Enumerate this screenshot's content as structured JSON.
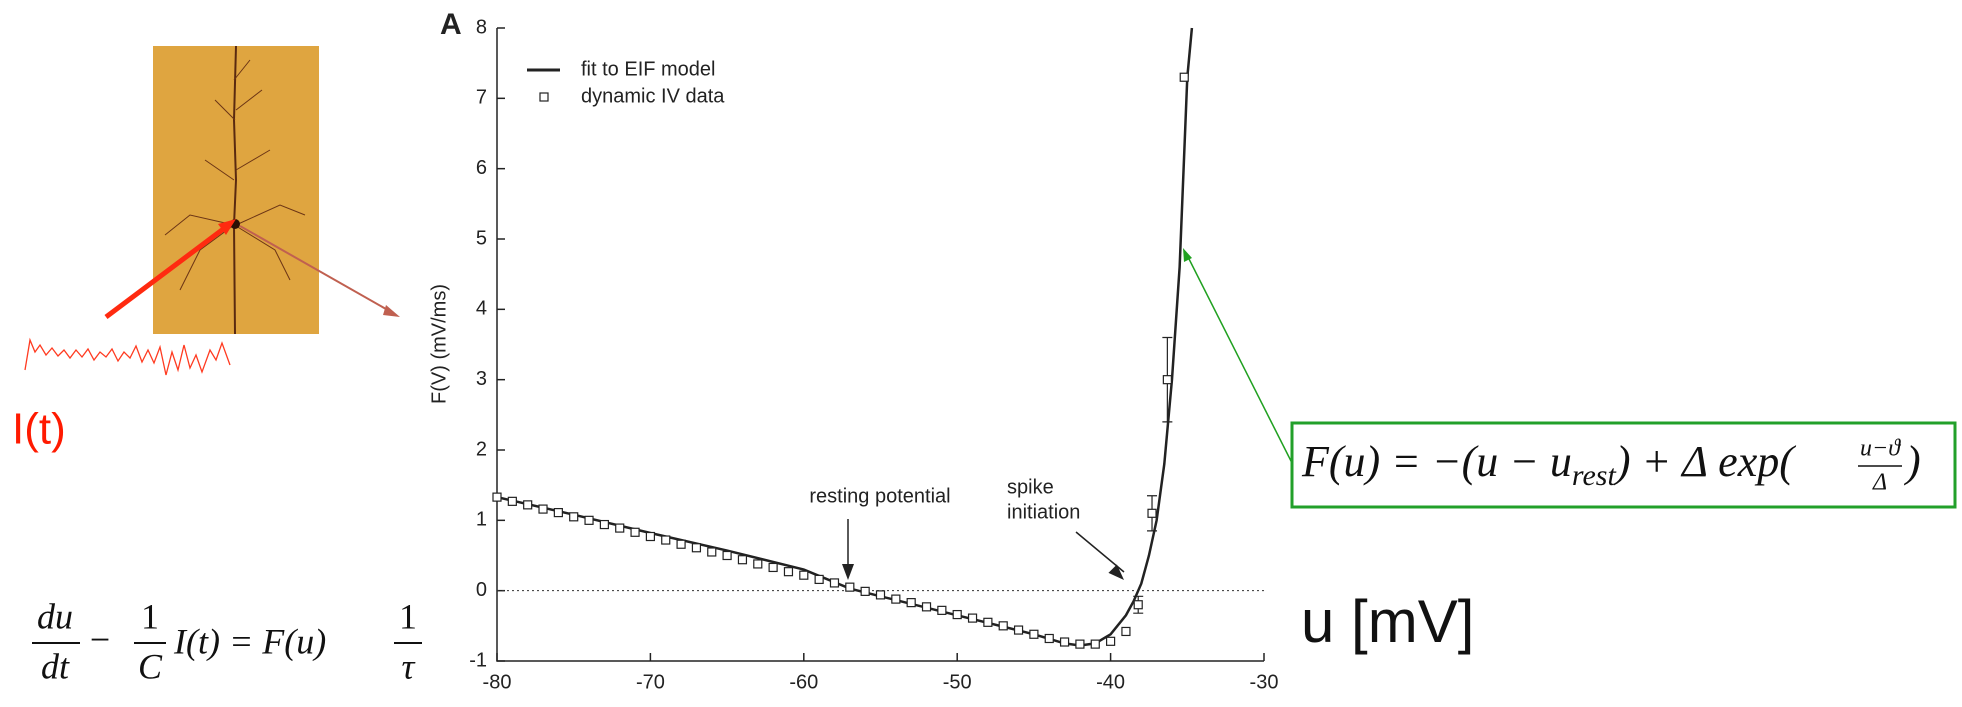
{
  "chart_data": {
    "type": "line",
    "title": "A",
    "ylabel": "F(V) (mV/ms)",
    "xlim": [
      -80,
      -30
    ],
    "ylim": [
      -1,
      8
    ],
    "xticks": [
      -80,
      -70,
      -60,
      -50,
      -40,
      -30
    ],
    "yticks": [
      -1,
      0,
      1,
      2,
      3,
      4,
      5,
      6,
      7,
      8
    ],
    "zero_line": true,
    "legend": "top-left",
    "series": [
      {
        "name": "fit to EIF model",
        "type": "line",
        "color": "#222222",
        "x": [
          -80,
          -75,
          -70,
          -65,
          -60,
          -57,
          -55,
          -50,
          -45,
          -43,
          -42,
          -41,
          -40,
          -39,
          -38.5,
          -38,
          -37.5,
          -37,
          -36.5,
          -36,
          -35.5,
          -35,
          -34.7
        ],
        "values": [
          1.33,
          1.08,
          0.82,
          0.57,
          0.3,
          0.03,
          -0.08,
          -0.35,
          -0.62,
          -0.75,
          -0.78,
          -0.75,
          -0.62,
          -0.35,
          -0.15,
          0.1,
          0.5,
          1.0,
          1.8,
          3.0,
          4.6,
          7.3,
          8
        ]
      },
      {
        "name": "dynamic IV data",
        "type": "scatter",
        "color": "#222222",
        "x": [
          -80,
          -79,
          -78,
          -77,
          -76,
          -75,
          -74,
          -73,
          -72,
          -71,
          -70,
          -69,
          -68,
          -67,
          -66,
          -65,
          -64,
          -63,
          -62,
          -61,
          -60,
          -59,
          -58,
          -57,
          -56,
          -55,
          -54,
          -53,
          -52,
          -51,
          -50,
          -49,
          -48,
          -47,
          -46,
          -45,
          -44,
          -43,
          -42,
          -41,
          -40,
          -39,
          -38.2,
          -37.3,
          -36.3,
          -35.2
        ],
        "values": [
          1.33,
          1.27,
          1.22,
          1.16,
          1.11,
          1.05,
          1.0,
          0.94,
          0.89,
          0.83,
          0.77,
          0.72,
          0.66,
          0.61,
          0.55,
          0.5,
          0.44,
          0.38,
          0.33,
          0.27,
          0.22,
          0.16,
          0.11,
          0.05,
          -0.01,
          -0.06,
          -0.12,
          -0.17,
          -0.23,
          -0.28,
          -0.34,
          -0.39,
          -0.45,
          -0.5,
          -0.56,
          -0.62,
          -0.68,
          -0.73,
          -0.76,
          -0.76,
          -0.72,
          -0.58,
          -0.2,
          1.1,
          3.0,
          7.3
        ],
        "errors": [
          null,
          null,
          null,
          null,
          null,
          null,
          null,
          null,
          null,
          null,
          null,
          null,
          null,
          null,
          null,
          null,
          null,
          null,
          null,
          null,
          null,
          null,
          null,
          null,
          null,
          null,
          null,
          null,
          null,
          null,
          null,
          null,
          null,
          null,
          null,
          null,
          null,
          null,
          null,
          null,
          null,
          null,
          0.12,
          0.25,
          0.6,
          null
        ]
      }
    ],
    "annotations": [
      {
        "lines": [
          "resting potential"
        ]
      },
      {
        "lines": [
          "spike",
          "initiation"
        ]
      }
    ]
  },
  "slide": {
    "input_label": "I(t)",
    "x_unit": "u [mV]",
    "model": [
      "F(u) = −(u − u",
      "rest",
      ") + Δ exp(",
      "u−ϑ",
      "Δ",
      ")"
    ],
    "equation": [
      "du",
      "dt",
      "−",
      "1",
      "C",
      "I(t) = F(u)",
      "1",
      "τ"
    ]
  }
}
